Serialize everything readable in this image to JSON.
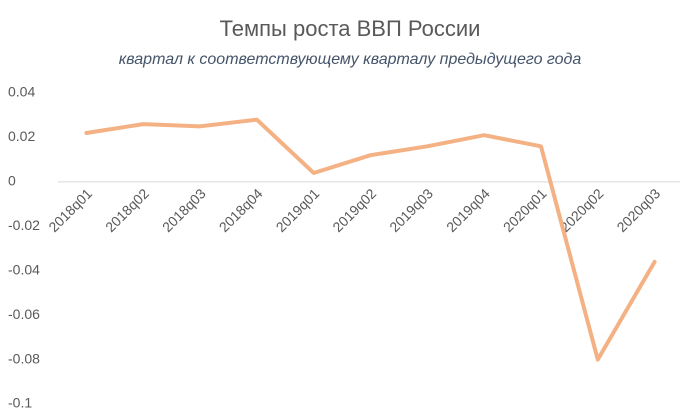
{
  "chart_data": {
    "type": "line",
    "title": "Темпы роста ВВП России",
    "subtitle": "квартал к соответствующему кварталу предыдущего года",
    "categories": [
      "2018q01",
      "2018q02",
      "2018q03",
      "2018q04",
      "2019q01",
      "2019q02",
      "2019q03",
      "2019q04",
      "2020q01",
      "2020q02",
      "2020q03"
    ],
    "series": [
      {
        "name": "ВВП",
        "color": "#f4b183",
        "values": [
          0.022,
          0.026,
          0.025,
          0.028,
          0.004,
          0.012,
          0.016,
          0.021,
          0.016,
          -0.08,
          -0.036
        ]
      }
    ],
    "ylim": [
      -0.1,
      0.04
    ],
    "yticks": [
      0.04,
      0.02,
      0,
      -0.02,
      -0.04,
      -0.06,
      -0.08,
      -0.1
    ],
    "zero_line": true
  }
}
